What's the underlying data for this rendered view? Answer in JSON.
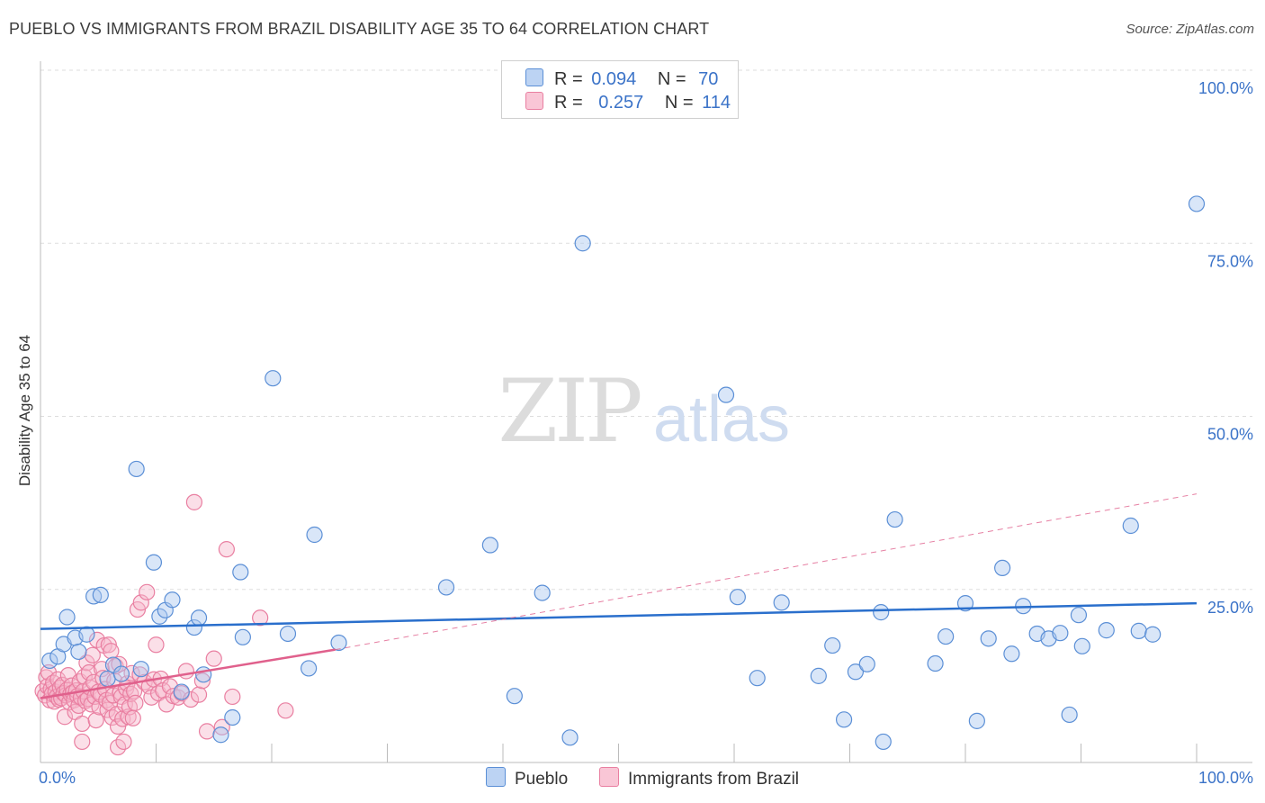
{
  "title": "PUEBLO VS IMMIGRANTS FROM BRAZIL DISABILITY AGE 35 TO 64 CORRELATION CHART",
  "source": "Source: ZipAtlas.com",
  "watermark": {
    "zip": "ZIP",
    "atlas": "atlas"
  },
  "colors": {
    "blue_fill": "#aac8f0",
    "blue_stroke": "#5b8fd6",
    "blue_line": "#2a6fcc",
    "pink_fill": "#f6b7cb",
    "pink_stroke": "#e97fa1",
    "pink_line": "#e0608c",
    "axis_text": "#3b73c8",
    "grid": "#dddddd"
  },
  "legend": {
    "rows": [
      {
        "r_label": "R =",
        "r_value": "0.094",
        "n_label": "N =",
        "n_value": "70",
        "series": "pueblo"
      },
      {
        "r_label": "R =",
        "r_value": "0.257",
        "n_label": "N =",
        "n_value": "114",
        "series": "brazil"
      }
    ]
  },
  "bottom_legend": [
    "Pueblo",
    "Immigrants from Brazil"
  ],
  "chart_data": {
    "type": "scatter",
    "title": "PUEBLO VS IMMIGRANTS FROM BRAZIL DISABILITY AGE 35 TO 64 CORRELATION CHART",
    "xlabel": "",
    "ylabel": "Disability Age 35 to 64",
    "xlim": [
      0,
      100
    ],
    "ylim": [
      0,
      100
    ],
    "x_tick_labels": [
      {
        "value": 0,
        "label": "0.0%"
      },
      {
        "value": 100,
        "label": "100.0%"
      }
    ],
    "y_tick_labels": [
      {
        "value": 25,
        "label": "25.0%"
      },
      {
        "value": 50,
        "label": "50.0%"
      },
      {
        "value": 75,
        "label": "75.0%"
      },
      {
        "value": 100,
        "label": "100.0%"
      }
    ],
    "legend_position": "top-center",
    "series": [
      {
        "name": "Pueblo",
        "R": 0.094,
        "N": 70,
        "trend": {
          "x": [
            0,
            100
          ],
          "y": [
            19.3,
            23.0
          ],
          "style": "solid"
        },
        "points": [
          [
            0.8,
            14.7
          ],
          [
            1.5,
            15.3
          ],
          [
            2.0,
            17.1
          ],
          [
            2.3,
            21.0
          ],
          [
            3.0,
            18.0
          ],
          [
            3.3,
            16.0
          ],
          [
            4.0,
            18.5
          ],
          [
            4.6,
            24.0
          ],
          [
            5.2,
            24.2
          ],
          [
            5.8,
            12.1
          ],
          [
            6.3,
            14.1
          ],
          [
            7.0,
            12.8
          ],
          [
            8.3,
            42.4
          ],
          [
            8.7,
            13.5
          ],
          [
            9.8,
            28.9
          ],
          [
            10.3,
            21.1
          ],
          [
            10.8,
            22.0
          ],
          [
            11.4,
            23.5
          ],
          [
            12.2,
            10.2
          ],
          [
            13.3,
            19.5
          ],
          [
            13.7,
            20.9
          ],
          [
            14.1,
            12.7
          ],
          [
            15.6,
            4.0
          ],
          [
            16.6,
            6.5
          ],
          [
            17.3,
            27.5
          ],
          [
            17.5,
            18.1
          ],
          [
            20.1,
            55.5
          ],
          [
            21.4,
            18.6
          ],
          [
            23.2,
            13.6
          ],
          [
            23.7,
            32.9
          ],
          [
            25.8,
            17.3
          ],
          [
            35.1,
            25.3
          ],
          [
            38.9,
            31.4
          ],
          [
            41.0,
            9.6
          ],
          [
            43.4,
            24.5
          ],
          [
            45.8,
            3.6
          ],
          [
            46.9,
            75.0
          ],
          [
            59.3,
            53.1
          ],
          [
            60.3,
            23.9
          ],
          [
            62.0,
            12.2
          ],
          [
            64.1,
            23.1
          ],
          [
            67.3,
            12.5
          ],
          [
            68.5,
            16.9
          ],
          [
            69.5,
            6.2
          ],
          [
            70.5,
            13.1
          ],
          [
            71.5,
            14.2
          ],
          [
            72.7,
            21.7
          ],
          [
            72.9,
            3.0
          ],
          [
            73.9,
            35.1
          ],
          [
            77.4,
            14.3
          ],
          [
            78.3,
            18.2
          ],
          [
            80.0,
            23.0
          ],
          [
            81.0,
            6.0
          ],
          [
            82.0,
            17.9
          ],
          [
            83.2,
            28.1
          ],
          [
            84.0,
            15.7
          ],
          [
            85.0,
            22.6
          ],
          [
            86.2,
            18.6
          ],
          [
            87.2,
            17.9
          ],
          [
            88.2,
            18.7
          ],
          [
            89.0,
            6.9
          ],
          [
            89.8,
            21.3
          ],
          [
            90.1,
            16.8
          ],
          [
            92.2,
            19.1
          ],
          [
            94.3,
            34.2
          ],
          [
            95.0,
            19.0
          ],
          [
            96.2,
            18.5
          ],
          [
            100.0,
            80.7
          ]
        ]
      },
      {
        "name": "Immigrants from Brazil",
        "R": 0.257,
        "N": 114,
        "trend": {
          "x": [
            0,
            25.5
          ],
          "y": [
            9.3,
            16.3
          ],
          "style": "solid",
          "dashed_extension": {
            "x": [
              25.5,
              100
            ],
            "y": [
              16.3,
              38.8
            ]
          }
        },
        "points": [
          [
            0.2,
            10.3
          ],
          [
            0.4,
            9.7
          ],
          [
            0.5,
            12.3
          ],
          [
            0.6,
            11.0
          ],
          [
            0.7,
            13.0
          ],
          [
            0.8,
            9.0
          ],
          [
            0.9,
            10.6
          ],
          [
            1.0,
            9.9
          ],
          [
            1.1,
            11.5
          ],
          [
            1.2,
            8.8
          ],
          [
            1.3,
            10.2
          ],
          [
            1.4,
            9.5
          ],
          [
            1.5,
            12.0
          ],
          [
            1.6,
            9.1
          ],
          [
            1.7,
            10.8
          ],
          [
            1.8,
            9.3
          ],
          [
            1.9,
            11.2
          ],
          [
            2.0,
            10.0
          ],
          [
            2.1,
            6.6
          ],
          [
            2.2,
            9.7
          ],
          [
            2.3,
            10.5
          ],
          [
            2.4,
            12.6
          ],
          [
            2.5,
            8.7
          ],
          [
            2.6,
            9.9
          ],
          [
            2.7,
            11.1
          ],
          [
            2.8,
            10.1
          ],
          [
            2.9,
            9.0
          ],
          [
            3.0,
            7.3
          ],
          [
            3.1,
            10.4
          ],
          [
            3.2,
            9.6
          ],
          [
            3.3,
            8.2
          ],
          [
            3.4,
            11.7
          ],
          [
            3.5,
            9.4
          ],
          [
            3.6,
            5.6
          ],
          [
            3.6,
            3.0
          ],
          [
            3.7,
            10.3
          ],
          [
            3.8,
            12.4
          ],
          [
            3.9,
            8.9
          ],
          [
            4.0,
            14.4
          ],
          [
            4.1,
            9.2
          ],
          [
            4.2,
            13.0
          ],
          [
            4.3,
            10.8
          ],
          [
            4.4,
            8.4
          ],
          [
            4.5,
            15.5
          ],
          [
            4.6,
            11.6
          ],
          [
            4.7,
            9.5
          ],
          [
            4.8,
            6.1
          ],
          [
            4.9,
            17.7
          ],
          [
            5.0,
            10.2
          ],
          [
            5.1,
            8.0
          ],
          [
            5.2,
            9.8
          ],
          [
            5.3,
            13.5
          ],
          [
            5.4,
            12.2
          ],
          [
            5.5,
            16.9
          ],
          [
            5.6,
            10.6
          ],
          [
            5.7,
            9.0
          ],
          [
            5.8,
            7.6
          ],
          [
            5.9,
            17.0
          ],
          [
            6.0,
            8.6
          ],
          [
            6.1,
            16.1
          ],
          [
            6.2,
            6.5
          ],
          [
            6.3,
            9.7
          ],
          [
            6.4,
            11.8
          ],
          [
            6.5,
            13.9
          ],
          [
            6.6,
            7.0
          ],
          [
            6.7,
            5.2
          ],
          [
            6.7,
            2.2
          ],
          [
            6.8,
            14.2
          ],
          [
            6.9,
            10.1
          ],
          [
            7.0,
            9.5
          ],
          [
            7.1,
            6.3
          ],
          [
            7.2,
            3.0
          ],
          [
            7.3,
            8.4
          ],
          [
            7.4,
            10.7
          ],
          [
            7.5,
            11.4
          ],
          [
            7.6,
            6.6
          ],
          [
            7.7,
            8.0
          ],
          [
            7.8,
            9.9
          ],
          [
            7.9,
            12.9
          ],
          [
            8.0,
            6.4
          ],
          [
            8.1,
            10.3
          ],
          [
            8.2,
            8.6
          ],
          [
            8.4,
            22.1
          ],
          [
            8.6,
            12.7
          ],
          [
            8.7,
            23.1
          ],
          [
            9.0,
            11.6
          ],
          [
            9.2,
            24.6
          ],
          [
            9.4,
            11.0
          ],
          [
            9.6,
            9.4
          ],
          [
            9.8,
            12.0
          ],
          [
            10.0,
            17.0
          ],
          [
            10.2,
            10.0
          ],
          [
            10.4,
            12.1
          ],
          [
            10.6,
            10.4
          ],
          [
            10.9,
            8.4
          ],
          [
            11.2,
            11.0
          ],
          [
            11.5,
            9.6
          ],
          [
            11.9,
            9.4
          ],
          [
            12.2,
            10.0
          ],
          [
            12.6,
            13.2
          ],
          [
            13.0,
            9.1
          ],
          [
            13.3,
            37.6
          ],
          [
            13.7,
            9.8
          ],
          [
            14.0,
            11.8
          ],
          [
            14.4,
            4.5
          ],
          [
            15.0,
            15.0
          ],
          [
            15.7,
            5.1
          ],
          [
            16.1,
            30.8
          ],
          [
            16.6,
            9.5
          ],
          [
            19.0,
            20.9
          ],
          [
            21.2,
            7.5
          ]
        ]
      }
    ]
  }
}
